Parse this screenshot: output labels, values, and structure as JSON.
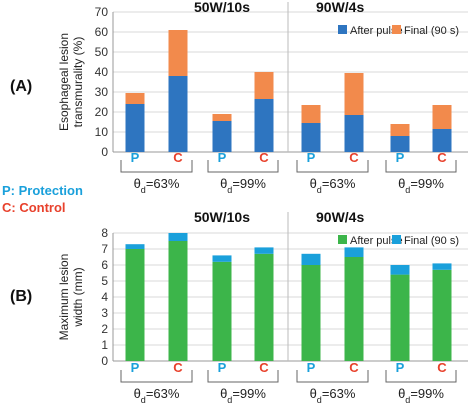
{
  "legend_notes": {
    "protection": "P: Protection",
    "control": "C: Control"
  },
  "colors": {
    "protection": "#1aa0db",
    "control": "#e8412c"
  },
  "chart_data": [
    {
      "panel_label": "(A)",
      "type": "bar",
      "stacked": true,
      "ylabel": "Esophageal lesion\ntransmurality (%)",
      "ylim": [
        0,
        70
      ],
      "yticks": [
        0,
        10,
        20,
        30,
        40,
        50,
        60,
        70
      ],
      "tick_decimals": 0,
      "grid": true,
      "legend_placement": "top-right",
      "group_titles": [
        "50W/10s",
        "90W/4s"
      ],
      "categories": [
        "P",
        "C",
        "P",
        "C",
        "P",
        "C",
        "P",
        "C"
      ],
      "pair_labels": [
        "θd=63%",
        "θd=99%",
        "θd=63%",
        "θd=99%"
      ],
      "series": [
        {
          "name": "After pulse",
          "color": "#2e75c0",
          "values": [
            24,
            38,
            15.5,
            26.5,
            14.5,
            18.5,
            8,
            11.5
          ]
        },
        {
          "name": "Final (90 s)",
          "color": "#f28a4c",
          "values": [
            5.5,
            23,
            3.5,
            13.5,
            9,
            21,
            6,
            12
          ]
        }
      ]
    },
    {
      "panel_label": "(B)",
      "type": "bar",
      "stacked": true,
      "ylabel": "Maximum lesion\nwidth (mm)",
      "ylim": [
        0,
        8
      ],
      "yticks": [
        0,
        1,
        2,
        3,
        4,
        5,
        6,
        7,
        8
      ],
      "tick_decimals": 0,
      "grid": true,
      "legend_placement": "top-right",
      "group_titles": [
        "50W/10s",
        "90W/4s"
      ],
      "categories": [
        "P",
        "C",
        "P",
        "C",
        "P",
        "C",
        "P",
        "C"
      ],
      "pair_labels": [
        "θd=63%",
        "θd=99%",
        "θd=63%",
        "θd=99%"
      ],
      "series": [
        {
          "name": "After pulse",
          "color": "#3cb54a",
          "values": [
            7.0,
            7.5,
            6.2,
            6.7,
            6.0,
            6.5,
            5.4,
            5.7
          ]
        },
        {
          "name": "Final (90 s)",
          "color": "#1aa0db",
          "values": [
            0.3,
            0.5,
            0.4,
            0.4,
            0.7,
            0.6,
            0.6,
            0.4
          ]
        }
      ]
    }
  ]
}
